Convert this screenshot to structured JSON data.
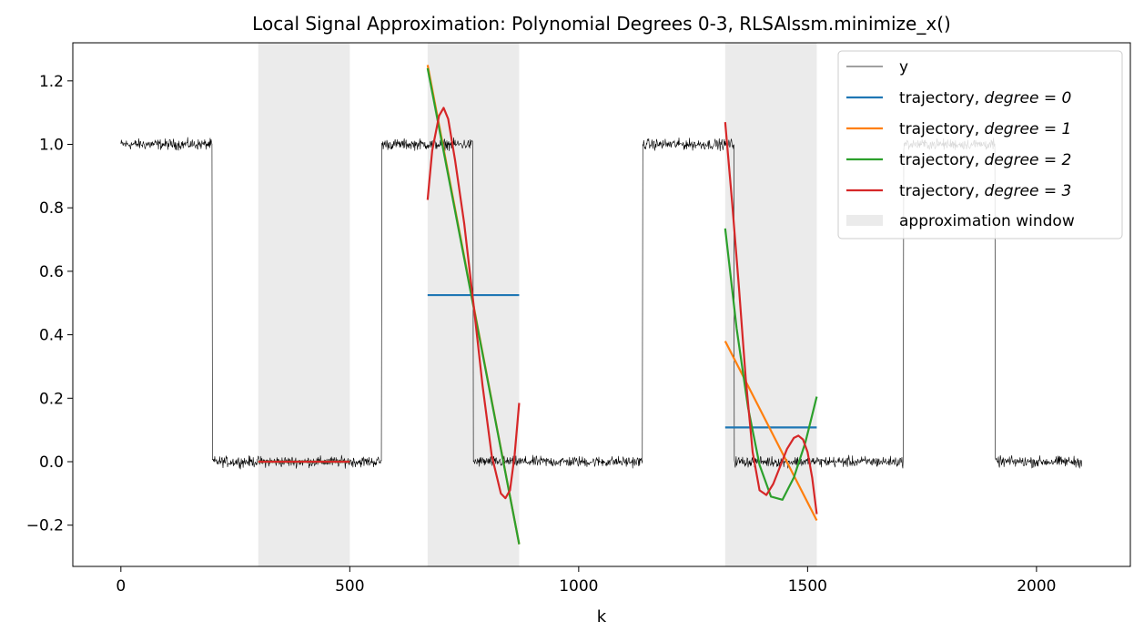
{
  "chart_data": {
    "type": "line",
    "title": "Local Signal Approximation: Polynomial Degrees 0-3, RLSAlssm.minimize_x()",
    "xlabel": "k",
    "ylabel": "",
    "xlim": [
      -105,
      2205
    ],
    "ylim": [
      -0.33,
      1.32
    ],
    "xticks": [
      0,
      500,
      1000,
      1500,
      2000
    ],
    "xtick_labels": [
      "0",
      "500",
      "1000",
      "1500",
      "2000"
    ],
    "yticks": [
      -0.2,
      0.0,
      0.2,
      0.4,
      0.6,
      0.8,
      1.0,
      1.2
    ],
    "ytick_labels": [
      "−0.2",
      "0.0",
      "0.2",
      "0.4",
      "0.6",
      "0.8",
      "1.0",
      "1.2"
    ],
    "grid": false,
    "legend_placement": "top-right",
    "windows": [
      [
        300,
        500
      ],
      [
        670,
        870
      ],
      [
        1320,
        1520
      ]
    ],
    "signal": {
      "name": "y",
      "color": "#000000",
      "segments": [
        {
          "x0": 0,
          "x1": 200,
          "level": 1.0
        },
        {
          "x0": 200,
          "x1": 570,
          "level": 0.0
        },
        {
          "x0": 570,
          "x1": 770,
          "level": 1.0
        },
        {
          "x0": 770,
          "x1": 1140,
          "level": 0.0
        },
        {
          "x0": 1140,
          "x1": 1340,
          "level": 1.0
        },
        {
          "x0": 1340,
          "x1": 1710,
          "level": 0.0
        },
        {
          "x0": 1710,
          "x1": 1910,
          "level": 1.0
        },
        {
          "x0": 1910,
          "x1": 2100,
          "level": 0.0
        }
      ],
      "noise_amplitude": 0.012
    },
    "series": [
      {
        "legend_label": "trajectory, ",
        "legend_math": "degree = 0",
        "color": "#1f77b4",
        "curves": [
          {
            "x": [
              300,
              500
            ],
            "y": [
              0.0,
              0.0
            ]
          },
          {
            "x": [
              670,
              870
            ],
            "y": [
              0.525,
              0.525
            ]
          },
          {
            "x": [
              1320,
              1520
            ],
            "y": [
              0.108,
              0.108
            ]
          }
        ]
      },
      {
        "legend_label": "trajectory, ",
        "legend_math": "degree = 1",
        "color": "#ff7f0e",
        "curves": [
          {
            "x": [
              300,
              500
            ],
            "y": [
              0.0,
              0.0
            ]
          },
          {
            "x": [
              670,
              870
            ],
            "y": [
              1.25,
              -0.26
            ]
          },
          {
            "x": [
              1320,
              1520
            ],
            "y": [
              0.38,
              -0.185
            ]
          }
        ]
      },
      {
        "legend_label": "trajectory, ",
        "legend_math": "degree = 2",
        "color": "#2ca02c",
        "curves": [
          {
            "x": [
              300,
              500
            ],
            "y": [
              0.0,
              0.0
            ]
          },
          {
            "x": [
              670,
              870
            ],
            "y": [
              1.24,
              -0.26
            ]
          },
          {
            "x": [
              1320,
              1345,
              1370,
              1395,
              1420,
              1445,
              1470,
              1495,
              1520
            ],
            "y": [
              0.735,
              0.42,
              0.17,
              -0.01,
              -0.11,
              -0.12,
              -0.05,
              0.06,
              0.205
            ]
          }
        ]
      },
      {
        "legend_label": "trajectory, ",
        "legend_math": "degree = 3",
        "color": "#d62728",
        "curves": [
          {
            "x": [
              300,
              500
            ],
            "y": [
              0.0,
              0.0
            ]
          },
          {
            "x": [
              670,
              680,
              695,
              705,
              715,
              730,
              750,
              770,
              790,
              810,
              830,
              840,
              850,
              860,
              870
            ],
            "y": [
              0.825,
              0.98,
              1.09,
              1.115,
              1.08,
              0.95,
              0.75,
              0.5,
              0.24,
              0.02,
              -0.1,
              -0.115,
              -0.09,
              0.02,
              0.185
            ]
          },
          {
            "x": [
              1320,
              1335,
              1350,
              1365,
              1380,
              1395,
              1410,
              1425,
              1440,
              1455,
              1470,
              1480,
              1490,
              1500,
              1510,
              1520
            ],
            "y": [
              1.07,
              0.82,
              0.55,
              0.26,
              0.03,
              -0.09,
              -0.105,
              -0.07,
              -0.015,
              0.04,
              0.075,
              0.082,
              0.07,
              0.03,
              -0.05,
              -0.165
            ]
          }
        ]
      }
    ],
    "legend": {
      "signal_label": "y",
      "window_label": "approximation window"
    }
  }
}
